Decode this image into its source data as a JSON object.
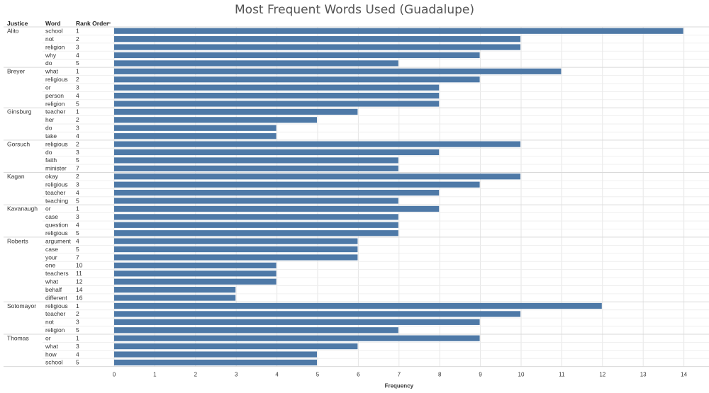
{
  "title": "Most Frequent Words Used (Guadalupe)",
  "headers": {
    "justice": "Justice",
    "word": "Word",
    "rank": "Rank Order"
  },
  "colors": {
    "bar": "#4e79a7",
    "grid": "#e6e6e6",
    "divider": "#d9d9d9"
  },
  "chart_data": {
    "type": "bar",
    "orientation": "horizontal",
    "title": "Most Frequent Words Used (Guadalupe)",
    "xlabel": "Frequency",
    "xlim": [
      0,
      14
    ],
    "xticks": [
      "0",
      "1",
      "2",
      "3",
      "4",
      "5",
      "6",
      "7",
      "8",
      "9",
      "10",
      "11",
      "12",
      "13",
      "14"
    ],
    "groups": [
      {
        "justice": "Alito",
        "rows": [
          {
            "word": "school",
            "rank": "1",
            "value": 14
          },
          {
            "word": "not",
            "rank": "2",
            "value": 10
          },
          {
            "word": "religion",
            "rank": "3",
            "value": 10
          },
          {
            "word": "why",
            "rank": "4",
            "value": 9
          },
          {
            "word": "do",
            "rank": "5",
            "value": 7
          }
        ]
      },
      {
        "justice": "Breyer",
        "rows": [
          {
            "word": "what",
            "rank": "1",
            "value": 11
          },
          {
            "word": "religious",
            "rank": "2",
            "value": 9
          },
          {
            "word": "or",
            "rank": "3",
            "value": 8
          },
          {
            "word": "person",
            "rank": "4",
            "value": 8
          },
          {
            "word": "religion",
            "rank": "5",
            "value": 8
          }
        ]
      },
      {
        "justice": "Ginsburg",
        "rows": [
          {
            "word": "teacher",
            "rank": "1",
            "value": 6
          },
          {
            "word": "her",
            "rank": "2",
            "value": 5
          },
          {
            "word": "do",
            "rank": "3",
            "value": 4
          },
          {
            "word": "take",
            "rank": "4",
            "value": 4
          }
        ]
      },
      {
        "justice": "Gorsuch",
        "rows": [
          {
            "word": "religious",
            "rank": "2",
            "value": 10
          },
          {
            "word": "do",
            "rank": "3",
            "value": 8
          },
          {
            "word": "faith",
            "rank": "5",
            "value": 7
          },
          {
            "word": "minister",
            "rank": "7",
            "value": 7
          }
        ]
      },
      {
        "justice": "Kagan",
        "rows": [
          {
            "word": "okay",
            "rank": "2",
            "value": 10
          },
          {
            "word": "religious",
            "rank": "3",
            "value": 9
          },
          {
            "word": "teacher",
            "rank": "4",
            "value": 8
          },
          {
            "word": "teaching",
            "rank": "5",
            "value": 7
          }
        ]
      },
      {
        "justice": "Kavanaugh",
        "rows": [
          {
            "word": "or",
            "rank": "1",
            "value": 8
          },
          {
            "word": "case",
            "rank": "3",
            "value": 7
          },
          {
            "word": "question",
            "rank": "4",
            "value": 7
          },
          {
            "word": "religious",
            "rank": "5",
            "value": 7
          }
        ]
      },
      {
        "justice": "Roberts",
        "rows": [
          {
            "word": "argument",
            "rank": "4",
            "value": 6
          },
          {
            "word": "case",
            "rank": "5",
            "value": 6
          },
          {
            "word": "your",
            "rank": "7",
            "value": 6
          },
          {
            "word": "one",
            "rank": "10",
            "value": 4
          },
          {
            "word": "teachers",
            "rank": "11",
            "value": 4
          },
          {
            "word": "what",
            "rank": "12",
            "value": 4
          },
          {
            "word": "behalf",
            "rank": "14",
            "value": 3
          },
          {
            "word": "different",
            "rank": "16",
            "value": 3
          }
        ]
      },
      {
        "justice": "Sotomayor",
        "rows": [
          {
            "word": "religious",
            "rank": "1",
            "value": 12
          },
          {
            "word": "teacher",
            "rank": "2",
            "value": 10
          },
          {
            "word": "not",
            "rank": "3",
            "value": 9
          },
          {
            "word": "religion",
            "rank": "5",
            "value": 7
          }
        ]
      },
      {
        "justice": "Thomas",
        "rows": [
          {
            "word": "or",
            "rank": "1",
            "value": 9
          },
          {
            "word": "what",
            "rank": "3",
            "value": 6
          },
          {
            "word": "how",
            "rank": "4",
            "value": 5
          },
          {
            "word": "school",
            "rank": "5",
            "value": 5
          }
        ]
      }
    ]
  }
}
